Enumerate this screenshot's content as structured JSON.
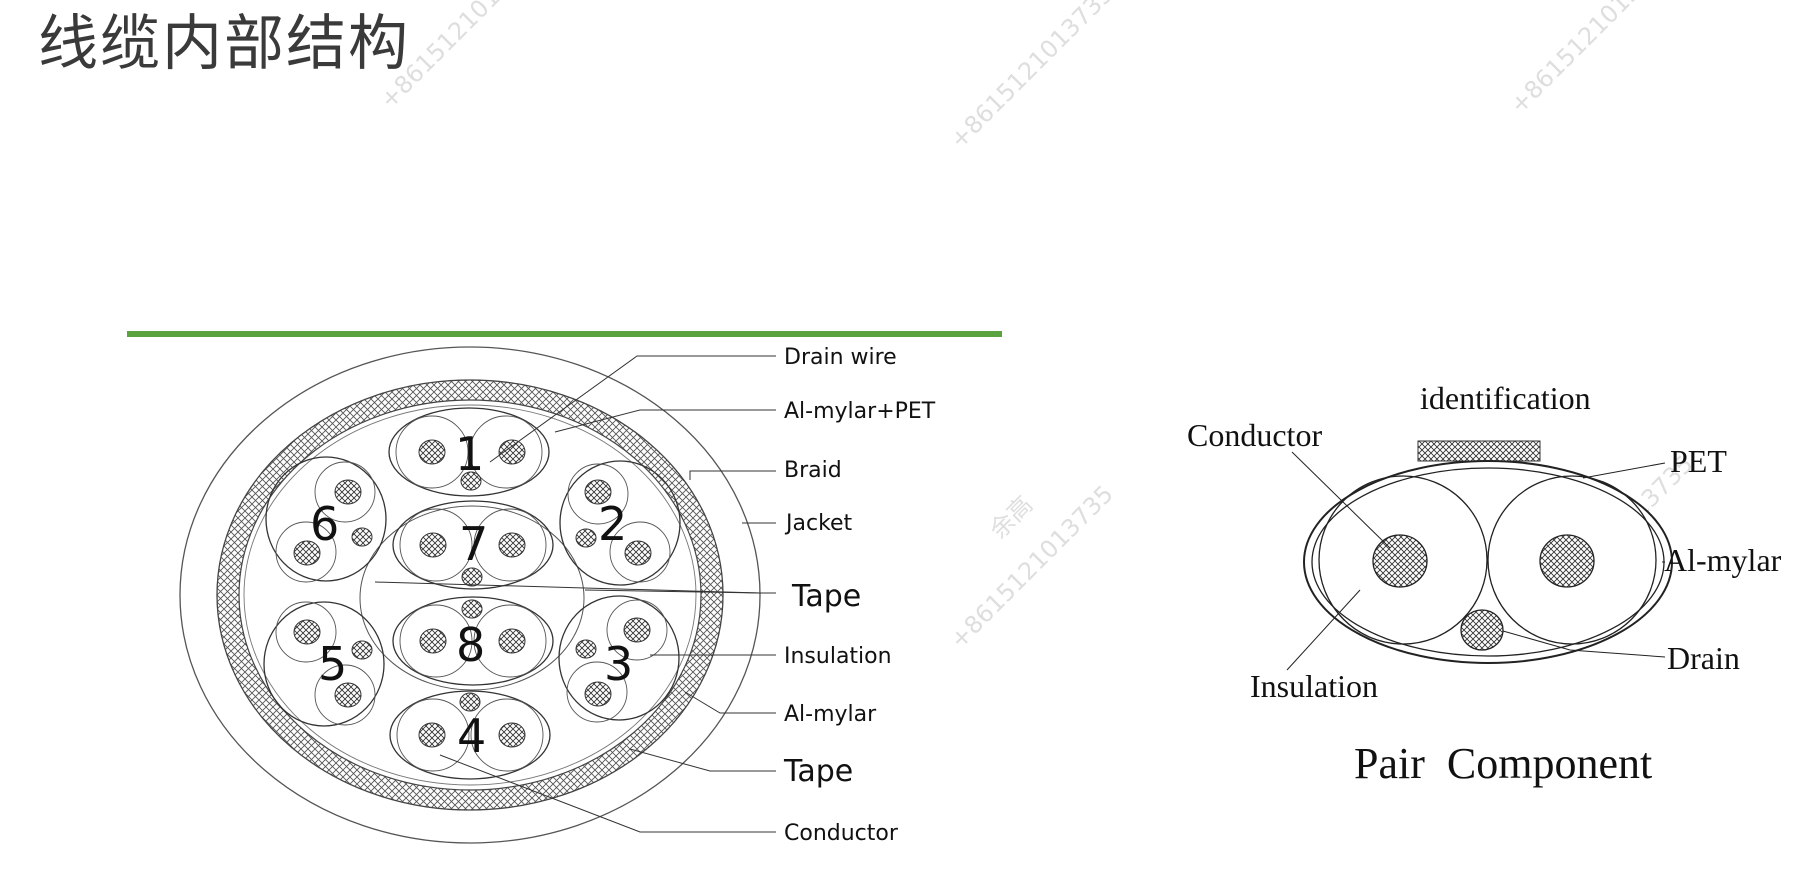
{
  "page": {
    "title": "线缆内部结构"
  },
  "accent_color": "#5aa33f",
  "cable_cross_section": {
    "pair_numbers": [
      "1",
      "2",
      "3",
      "4",
      "5",
      "6",
      "7",
      "8"
    ],
    "labels": {
      "drain_wire": "Drain wire",
      "al_mylar_pet": "Al-mylar+PET",
      "braid": "Braid",
      "jacket": "Jacket",
      "tape_inner": "Tape",
      "insulation": "Insulation",
      "al_mylar": "Al-mylar",
      "tape_outer": "Tape",
      "conductor": "Conductor"
    }
  },
  "pair_component": {
    "title": "Pair  Component",
    "labels": {
      "identification": "identification",
      "conductor": "Conductor",
      "pet": "PET",
      "al_mylar": "Al-mylar",
      "drain": "Drain",
      "insulation": "Insulation"
    }
  },
  "watermarks": [
    "+86151210137",
    "+8615121013735",
    "余高",
    "+8615121013735",
    "+86151210137",
    "余高",
    "+8615121013735"
  ]
}
